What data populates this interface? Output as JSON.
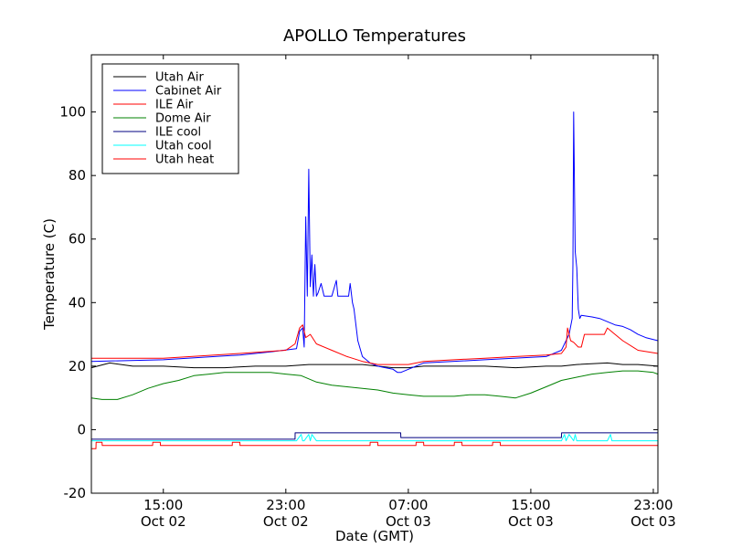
{
  "chart_data": {
    "type": "line",
    "title": "APOLLO Temperatures",
    "xlabel": "Date (GMT)",
    "ylabel": "Temperature (C)",
    "x_unit": "hours since Oct 02 00:00 GMT",
    "xlim": [
      10.3,
      47.3
    ],
    "ylim": [
      -20,
      118
    ],
    "yticks": [
      -20,
      0,
      20,
      40,
      60,
      80,
      100
    ],
    "xticks": [
      {
        "x": 15,
        "line1": "15:00",
        "line2": "Oct 02"
      },
      {
        "x": 23,
        "line1": "23:00",
        "line2": "Oct 02"
      },
      {
        "x": 31,
        "line1": "07:00",
        "line2": "Oct 03"
      },
      {
        "x": 39,
        "line1": "15:00",
        "line2": "Oct 03"
      },
      {
        "x": 47,
        "line1": "23:00",
        "line2": "Oct 03"
      }
    ],
    "legend_position": "top-left",
    "series": [
      {
        "name": "Utah Air",
        "color": "#000000",
        "x": [
          10.3,
          11.5,
          13,
          15,
          17,
          19,
          21,
          23,
          24.5,
          26,
          28,
          30,
          31,
          32,
          34,
          36,
          38,
          40,
          41,
          42,
          44,
          45,
          46,
          47.3
        ],
        "y": [
          19.5,
          21,
          20,
          20,
          19.5,
          19.5,
          20,
          20,
          20.5,
          20.5,
          20.5,
          19.5,
          19.5,
          20,
          20,
          20,
          19.5,
          20,
          20,
          20.5,
          21,
          20.5,
          20.5,
          20
        ]
      },
      {
        "name": "Cabinet Air",
        "color": "#0000ff",
        "x": [
          10.3,
          15,
          20,
          22,
          23.7,
          23.9,
          24.1,
          24.2,
          24.3,
          24.4,
          24.5,
          24.6,
          24.7,
          24.8,
          24.9,
          25,
          25.1,
          25.3,
          25.5,
          25.6,
          25.7,
          25.8,
          26,
          26.3,
          26.4,
          26.6,
          27.1,
          27.2,
          27.3,
          27.35,
          27.45,
          27.7,
          28,
          28.5,
          29,
          29.5,
          30,
          30.3,
          30.5,
          32,
          36,
          40,
          41,
          41.3,
          41.5,
          41.7,
          41.75,
          41.8,
          41.9,
          42,
          42.1,
          42.2,
          42.3,
          43,
          43.5,
          44,
          44.5,
          45,
          45.5,
          46,
          46.5,
          47.3
        ],
        "y": [
          21.5,
          22,
          23.5,
          24.5,
          25.5,
          31,
          32,
          26,
          67,
          42,
          82,
          45,
          55,
          42,
          52,
          42,
          43,
          46,
          42,
          42,
          42,
          42,
          42,
          47,
          42,
          42,
          42,
          46,
          42,
          40,
          38,
          28,
          23,
          21,
          20,
          19.5,
          19,
          18,
          18,
          21,
          22,
          23,
          25,
          28,
          30,
          35,
          52,
          100,
          56,
          51,
          38,
          35,
          36,
          35.5,
          35,
          34,
          33,
          32.5,
          31.5,
          30,
          29,
          28
        ]
      },
      {
        "name": "ILE Air",
        "color": "#ff0000",
        "x": [
          10.3,
          15,
          20,
          23,
          23.6,
          23.9,
          24.1,
          24.3,
          24.6,
          25,
          26,
          27,
          28,
          29,
          30,
          31,
          32,
          34,
          36,
          38,
          40,
          41,
          41.3,
          41.4,
          41.6,
          41.8,
          42.1,
          42.3,
          42.5,
          43,
          43.8,
          44,
          44.5,
          45,
          46,
          47.3
        ],
        "y": [
          22.5,
          22.5,
          24,
          25,
          27,
          32,
          33,
          29,
          30,
          27,
          25,
          23,
          21.5,
          20.5,
          20.5,
          20.5,
          21.5,
          22,
          22.5,
          23,
          23.5,
          24,
          26,
          32,
          28,
          27.5,
          26,
          26,
          30,
          30,
          30,
          32,
          30,
          28,
          25,
          24
        ]
      },
      {
        "name": "Dome Air",
        "color": "#008000",
        "x": [
          10.3,
          11,
          12,
          13,
          14,
          15,
          16,
          17,
          18,
          19,
          20,
          21,
          22,
          23,
          24,
          25,
          26,
          27,
          28,
          29,
          30,
          31,
          32,
          33,
          34,
          35,
          36,
          37,
          38,
          39,
          40,
          41,
          42,
          43,
          44,
          45,
          46,
          47,
          47.3
        ],
        "y": [
          10,
          9.5,
          9.5,
          11,
          13,
          14.5,
          15.5,
          17,
          17.5,
          18,
          18,
          18,
          18,
          17.5,
          17,
          15,
          14,
          13.5,
          13,
          12.5,
          11.5,
          11,
          10.5,
          10.5,
          10.5,
          11,
          11,
          10.5,
          10,
          11.5,
          13.5,
          15.5,
          16.5,
          17.5,
          18,
          18.5,
          18.5,
          18,
          17.5
        ]
      },
      {
        "name": "ILE cool",
        "color": "#000080",
        "x": [
          10.3,
          23.6,
          23.61,
          30.5,
          30.51,
          41,
          41.01,
          47.3
        ],
        "y": [
          -3,
          -3,
          -1,
          -1,
          -2.5,
          -2.5,
          -1,
          -1
        ]
      },
      {
        "name": "Utah cool",
        "color": "#00ffff",
        "x": [
          10.3,
          23.7,
          24,
          24.1,
          24.2,
          24.5,
          24.6,
          24.7,
          25,
          41,
          41.2,
          41.3,
          41.5,
          41.8,
          41.9,
          42,
          42.3,
          44,
          44.2,
          44.3,
          47.3
        ],
        "y": [
          -3.5,
          -3.5,
          -1.5,
          -3.5,
          -3.5,
          -1.5,
          -3.5,
          -1.5,
          -3.5,
          -3.5,
          -1.5,
          -3.5,
          -1.5,
          -3.5,
          -1.5,
          -3.5,
          -3.5,
          -3.5,
          -1.5,
          -3.5,
          -3.5
        ]
      },
      {
        "name": "Utah heat",
        "color": "#ff0000",
        "x": [
          10.3,
          10.6,
          10.61,
          11,
          11.01,
          14.3,
          14.31,
          14.8,
          14.81,
          19.5,
          19.51,
          20,
          20.01,
          28.5,
          28.51,
          29,
          29.01,
          31.5,
          31.51,
          32,
          32.01,
          34,
          34.01,
          34.5,
          34.51,
          36.5,
          36.51,
          37,
          37.01,
          47.3
        ],
        "y": [
          -6,
          -6,
          -4,
          -4,
          -5,
          -5,
          -4,
          -4,
          -5,
          -5,
          -4,
          -4,
          -5,
          -5,
          -4,
          -4,
          -5,
          -5,
          -4,
          -4,
          -5,
          -5,
          -4,
          -4,
          -5,
          -5,
          -4,
          -4,
          -5,
          -5
        ]
      }
    ]
  }
}
